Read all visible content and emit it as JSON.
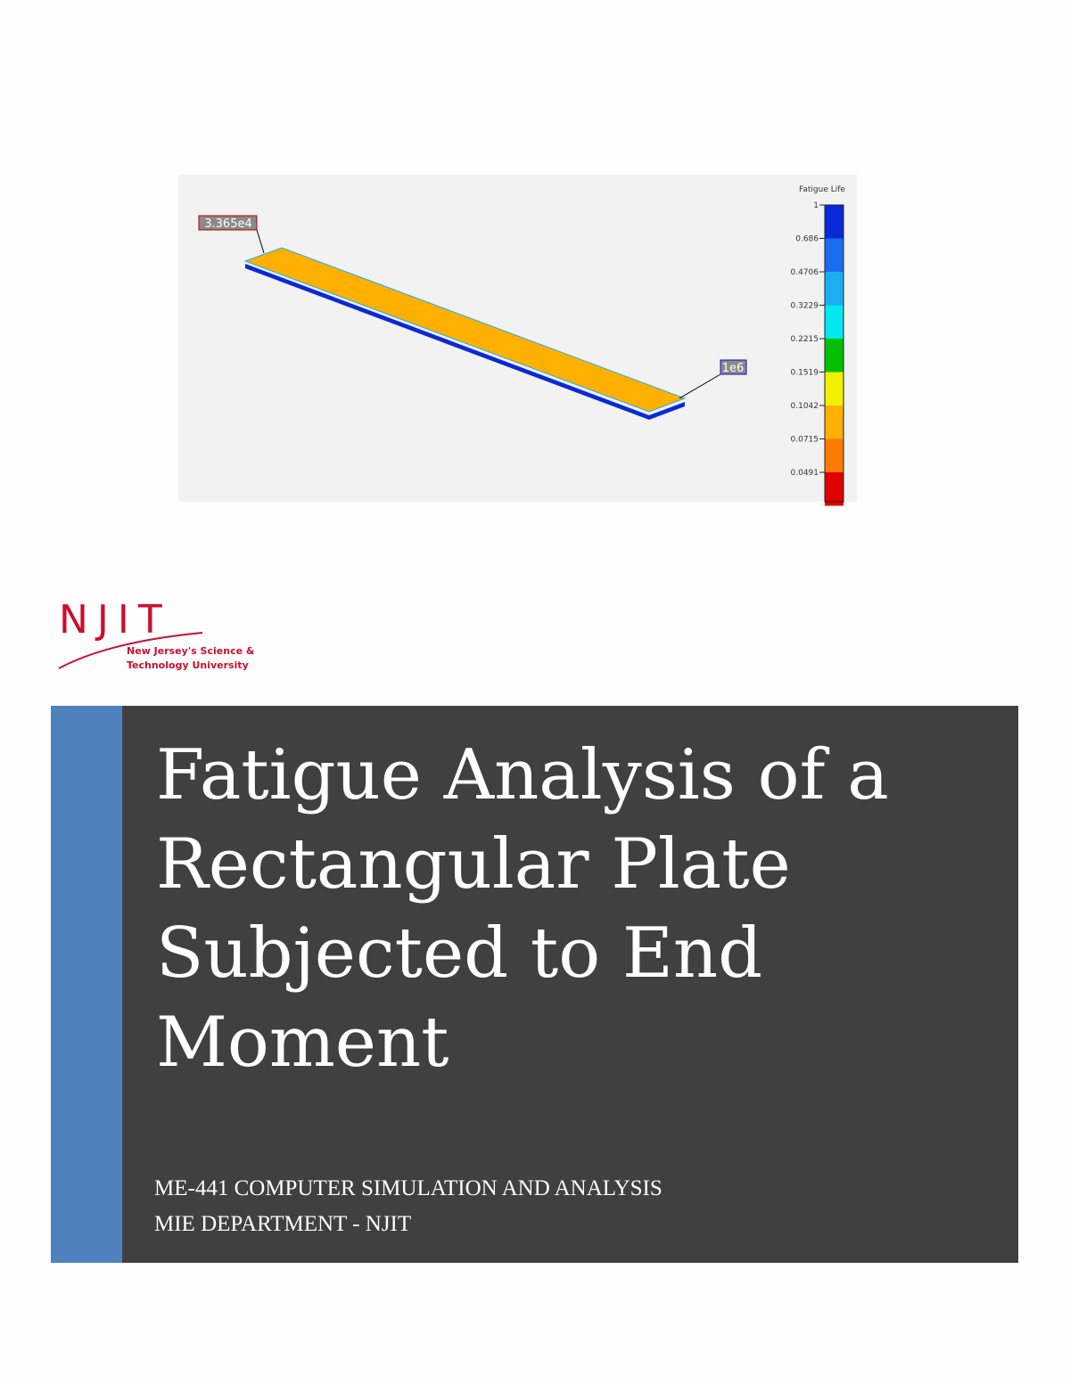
{
  "figure": {
    "legend_title": "Fatigue Life",
    "legend_ticks": [
      "1",
      "0.686",
      "0.4706",
      "0.3229",
      "0.2215",
      "0.1519",
      "0.1042",
      "0.0715",
      "0.0491"
    ],
    "probe_labels": [
      "3.365e4",
      "1e6"
    ]
  },
  "logo": {
    "name": "NJIT",
    "tagline": [
      "New Jersey's Science &",
      "Technology University"
    ]
  },
  "cover": {
    "title": [
      "Fatigue Analysis of a",
      "Rectangular Plate",
      "Subjected to End",
      "Moment"
    ],
    "subtitle": [
      "ME-441 COMPUTER SIMULATION AND ANALYSIS",
      "MIE DEPARTMENT - NJIT"
    ]
  }
}
